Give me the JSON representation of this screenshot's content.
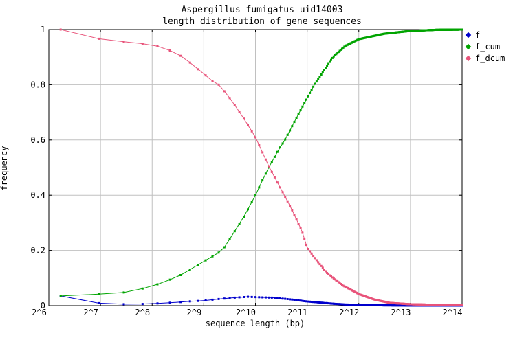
{
  "title": {
    "line1": "Aspergillus fumigatus uid14003",
    "line2": "length distribution of gene sequences"
  },
  "axes": {
    "x": {
      "label": "sequence length (bp)",
      "ticks": [
        "2^6",
        "2^7",
        "2^8",
        "2^9",
        "2^10",
        "2^11",
        "2^12",
        "2^13",
        "2^14"
      ]
    },
    "y": {
      "label": "frequency",
      "ticks": [
        "0",
        "0.2",
        "0.4",
        "0.6",
        "0.8",
        "1"
      ],
      "tick_values": [
        0,
        0.2,
        0.4,
        0.6,
        0.8,
        1
      ]
    }
  },
  "legend": [
    {
      "label": "f",
      "color": "#0000cc"
    },
    {
      "label": "f_cum",
      "color": "#00a400"
    },
    {
      "label": "f_dcum",
      "color": "#e8537a"
    }
  ],
  "colors": {
    "grid": "#c0c0c0",
    "border": "#000000",
    "background": "#ffffff"
  },
  "chart_data": {
    "type": "line",
    "title": "Aspergillus fumigatus uid14003 - length distribution of gene sequences",
    "xlabel": "sequence length (bp)",
    "ylabel": "frequency",
    "x_scale": "log2",
    "xlim": [
      64,
      16384
    ],
    "ylim": [
      0,
      1
    ],
    "grid": true,
    "legend_position": "outside-top-right",
    "marker": "square",
    "bin_start_bp": 75,
    "bin_width_bp": 50,
    "series": [
      {
        "name": "f",
        "color": "#0000cc",
        "points": [
          [
            76,
            0.035
          ],
          [
            97,
            0.018
          ],
          [
            128,
            0.008
          ],
          [
            169,
            0.005
          ],
          [
            223,
            0.006
          ],
          [
            274,
            0.008
          ],
          [
            338,
            0.011
          ],
          [
            416,
            0.015
          ],
          [
            512,
            0.018
          ],
          [
            630,
            0.024
          ],
          [
            776,
            0.029
          ],
          [
            923,
            0.032
          ],
          [
            1097,
            0.03
          ],
          [
            1261,
            0.029
          ],
          [
            1448,
            0.026
          ],
          [
            1722,
            0.021
          ],
          [
            2048,
            0.015
          ],
          [
            2435,
            0.011
          ],
          [
            2896,
            0.007
          ],
          [
            3444,
            0.004
          ],
          [
            4096,
            0.003
          ],
          [
            5793,
            0.001
          ],
          [
            8192,
            0.0005
          ],
          [
            16384,
            0.0003
          ]
        ]
      },
      {
        "name": "f_cum",
        "color": "#00a400",
        "points": [
          [
            76,
            0.035
          ],
          [
            97,
            0.038
          ],
          [
            128,
            0.042
          ],
          [
            181,
            0.048
          ],
          [
            256,
            0.07
          ],
          [
            362,
            0.105
          ],
          [
            512,
            0.16
          ],
          [
            657,
            0.2
          ],
          [
            776,
            0.27
          ],
          [
            891,
            0.33
          ],
          [
            1024,
            0.4
          ],
          [
            1137,
            0.46
          ],
          [
            1235,
            0.505
          ],
          [
            1399,
            0.565
          ],
          [
            1520,
            0.6
          ],
          [
            1846,
            0.7
          ],
          [
            2256,
            0.8
          ],
          [
            2896,
            0.9
          ],
          [
            3400,
            0.94
          ],
          [
            4096,
            0.965
          ],
          [
            5793,
            0.985
          ],
          [
            8192,
            0.995
          ],
          [
            11585,
            0.999
          ],
          [
            16384,
            1.0
          ]
        ]
      },
      {
        "name": "f_dcum",
        "color": "#e8537a",
        "points": [
          [
            76,
            1.0
          ],
          [
            97,
            0.985
          ],
          [
            128,
            0.965
          ],
          [
            181,
            0.955
          ],
          [
            256,
            0.945
          ],
          [
            294,
            0.935
          ],
          [
            338,
            0.92
          ],
          [
            388,
            0.9
          ],
          [
            446,
            0.87
          ],
          [
            512,
            0.84
          ],
          [
            568,
            0.815
          ],
          [
            626,
            0.8
          ],
          [
            700,
            0.765
          ],
          [
            809,
            0.71
          ],
          [
            923,
            0.655
          ],
          [
            1024,
            0.61
          ],
          [
            1235,
            0.5
          ],
          [
            1448,
            0.42
          ],
          [
            1663,
            0.35
          ],
          [
            1911,
            0.27
          ],
          [
            2048,
            0.21
          ],
          [
            2353,
            0.16
          ],
          [
            2702,
            0.115
          ],
          [
            3327,
            0.072
          ],
          [
            4096,
            0.042
          ],
          [
            5043,
            0.022
          ],
          [
            6208,
            0.01
          ],
          [
            8192,
            0.005
          ],
          [
            11585,
            0.003
          ],
          [
            16384,
            0.003
          ]
        ]
      }
    ]
  }
}
